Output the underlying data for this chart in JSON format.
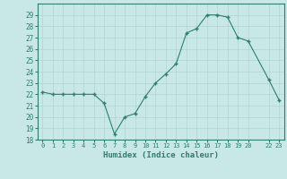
{
  "x": [
    0,
    1,
    2,
    3,
    4,
    5,
    6,
    7,
    8,
    9,
    10,
    11,
    12,
    13,
    14,
    15,
    16,
    17,
    18,
    19,
    20,
    22,
    23
  ],
  "y": [
    22.2,
    22.0,
    22.0,
    22.0,
    22.0,
    22.0,
    21.2,
    18.5,
    20.0,
    20.3,
    21.8,
    23.0,
    23.8,
    24.7,
    27.4,
    27.8,
    29.0,
    29.0,
    28.8,
    27.0,
    26.7,
    23.3,
    21.5
  ],
  "line_color": "#2E7D6E",
  "marker_color": "#2E7D6E",
  "bg_color": "#C8E8E8",
  "grid_color": "#B0D4D0",
  "xlabel": "Humidex (Indice chaleur)",
  "ylim": [
    18,
    30
  ],
  "xlim": [
    -0.5,
    23.5
  ],
  "yticks": [
    18,
    19,
    20,
    21,
    22,
    23,
    24,
    25,
    26,
    27,
    28,
    29
  ],
  "xtick_positions": [
    0,
    1,
    2,
    3,
    4,
    5,
    6,
    7,
    8,
    9,
    10,
    11,
    12,
    13,
    14,
    15,
    16,
    17,
    18,
    19,
    20,
    22,
    23
  ],
  "xtick_labels": [
    "0",
    "1",
    "2",
    "3",
    "4",
    "5",
    "6",
    "7",
    "8",
    "9",
    "10",
    "11",
    "12",
    "13",
    "14",
    "15",
    "16",
    "17",
    "18",
    "19",
    "20",
    "22",
    "23"
  ],
  "font_color": "#2E7D6E"
}
